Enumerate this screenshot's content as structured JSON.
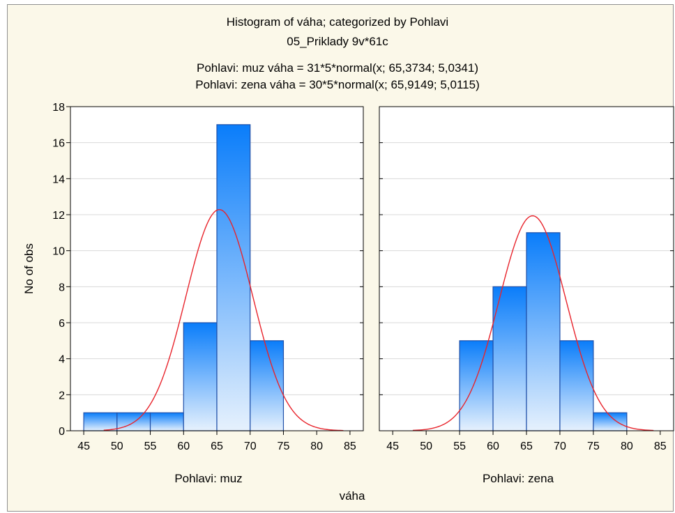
{
  "chart_data": {
    "type": "bar",
    "title": "Histogram of váha; categorized by Pohlavi",
    "subtitle": "05_Priklady 9v*61c",
    "fit_annotations": [
      "Pohlavi: muz váha = 31*5*normal(x; 65,3734; 5,0341)",
      "Pohlavi: zena váha = 30*5*normal(x; 65,9149; 5,0115)"
    ],
    "xlabel": "váha",
    "ylabel": "No of obs",
    "xlim": [
      43,
      87
    ],
    "ylim": [
      0,
      18
    ],
    "xticks": [
      "45",
      "50",
      "55",
      "60",
      "65",
      "70",
      "75",
      "80",
      "85"
    ],
    "yticks": [
      "0",
      "2",
      "4",
      "6",
      "8",
      "10",
      "12",
      "14",
      "16",
      "18"
    ],
    "grid": true,
    "bar_color_top": "#0a7dfa",
    "bar_color_bottom": "#e6f1fd",
    "bar_edge_color": "#1f4fa8",
    "curve_color": "#e8232b",
    "panels": [
      {
        "label": "Pohlavi: muz",
        "bins": [
          [
            45,
            50
          ],
          [
            50,
            55
          ],
          [
            55,
            60
          ],
          [
            60,
            65
          ],
          [
            65,
            70
          ],
          [
            70,
            75
          ]
        ],
        "values": [
          1,
          1,
          1,
          6,
          17,
          5
        ],
        "normal_fit": {
          "n": 31,
          "bin_width": 5,
          "mean": 65.3734,
          "sd": 5.0341
        }
      },
      {
        "label": "Pohlavi: zena",
        "bins": [
          [
            55,
            60
          ],
          [
            60,
            65
          ],
          [
            65,
            70
          ],
          [
            70,
            75
          ],
          [
            75,
            80
          ]
        ],
        "values": [
          5,
          8,
          11,
          5,
          1
        ],
        "normal_fit": {
          "n": 30,
          "bin_width": 5,
          "mean": 65.9149,
          "sd": 5.0115
        }
      }
    ]
  }
}
